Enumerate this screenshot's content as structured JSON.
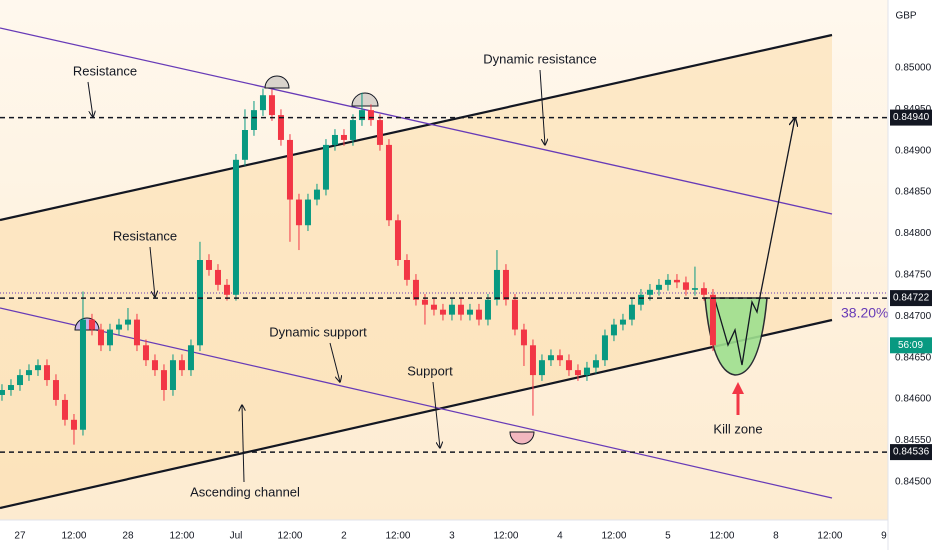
{
  "chart_data": {
    "type": "candlestick",
    "currency": "GBP",
    "x": [
      -4,
      -2,
      0,
      2,
      4,
      6,
      8,
      10,
      12,
      14,
      16,
      18,
      20,
      22,
      24,
      26,
      28,
      30,
      32,
      34,
      36,
      38,
      40,
      42,
      44,
      46,
      48,
      50,
      52,
      54,
      56,
      58,
      60,
      62,
      64,
      66,
      68,
      70,
      72,
      74,
      76,
      78,
      80,
      82,
      84,
      86,
      88,
      90,
      92,
      94,
      96,
      98,
      100,
      102,
      104,
      106,
      108,
      110,
      112,
      114,
      116,
      118,
      120,
      122,
      124,
      126,
      128,
      130,
      132,
      134,
      136,
      138,
      140,
      142,
      144,
      146,
      148,
      150,
      152,
      154
    ],
    "open": [
      0.84605,
      0.84611,
      0.84617,
      0.84629,
      0.84635,
      0.84641,
      0.84623,
      0.84599,
      0.84575,
      0.84563,
      0.84696,
      0.84684,
      0.84665,
      0.84684,
      0.8469,
      0.84696,
      0.84665,
      0.84647,
      0.84635,
      0.84611,
      0.84647,
      0.84635,
      0.84665,
      0.84768,
      0.84756,
      0.84738,
      0.84726,
      0.84889,
      0.84925,
      0.84949,
      0.84967,
      0.84943,
      0.84913,
      0.84841,
      0.8481,
      0.84841,
      0.84853,
      0.84907,
      0.84919,
      0.84913,
      0.84937,
      0.84949,
      0.84937,
      0.84907,
      0.84816,
      0.84768,
      0.84744,
      0.8472,
      0.84714,
      0.84708,
      0.84702,
      0.84714,
      0.84702,
      0.84708,
      0.84696,
      0.8472,
      0.84756,
      0.8472,
      0.84684,
      0.84665,
      0.84629,
      0.84647,
      0.84653,
      0.84647,
      0.84635,
      0.84629,
      0.84638,
      0.84647,
      0.84677,
      0.8469,
      0.84696,
      0.84714,
      0.84726,
      0.84732,
      0.84738,
      0.84744,
      0.84741,
      0.84732,
      0.84734,
      0.84726
    ],
    "high": [
      0.84618,
      0.84624,
      0.84636,
      0.84642,
      0.84648,
      0.84648,
      0.8463,
      0.84606,
      0.84582,
      0.8473,
      0.84703,
      0.84691,
      0.84691,
      0.84697,
      0.8471,
      0.84703,
      0.84672,
      0.84654,
      0.84642,
      0.84654,
      0.84654,
      0.84672,
      0.8479,
      0.84775,
      0.84763,
      0.84745,
      0.84896,
      0.8495,
      0.8496,
      0.84975,
      0.84974,
      0.8495,
      0.8492,
      0.84848,
      0.84848,
      0.8486,
      0.84914,
      0.84926,
      0.84926,
      0.84944,
      0.8497,
      0.84956,
      0.84944,
      0.84914,
      0.84823,
      0.84775,
      0.84751,
      0.84727,
      0.84721,
      0.84715,
      0.84721,
      0.84721,
      0.84715,
      0.84715,
      0.84727,
      0.8478,
      0.84763,
      0.84727,
      0.84691,
      0.84672,
      0.84654,
      0.8466,
      0.8466,
      0.84654,
      0.84642,
      0.84645,
      0.84654,
      0.84684,
      0.84697,
      0.84703,
      0.84721,
      0.84733,
      0.84739,
      0.84745,
      0.84751,
      0.84751,
      0.84748,
      0.8476,
      0.84741,
      0.84733
    ],
    "low": [
      0.84598,
      0.84604,
      0.8461,
      0.84622,
      0.84628,
      0.84616,
      0.84592,
      0.84568,
      0.84545,
      0.84556,
      0.84677,
      0.84658,
      0.84658,
      0.84677,
      0.84683,
      0.84658,
      0.8464,
      0.84628,
      0.84598,
      0.84604,
      0.84628,
      0.84628,
      0.84658,
      0.84749,
      0.84731,
      0.84719,
      0.84719,
      0.84882,
      0.84918,
      0.84942,
      0.84936,
      0.84906,
      0.8479,
      0.8478,
      0.84803,
      0.84834,
      0.84846,
      0.849,
      0.84906,
      0.84906,
      0.8493,
      0.8493,
      0.849,
      0.84809,
      0.84761,
      0.84737,
      0.84713,
      0.8469,
      0.84701,
      0.84695,
      0.84695,
      0.84695,
      0.84695,
      0.84689,
      0.84689,
      0.84713,
      0.84713,
      0.84677,
      0.8464,
      0.8458,
      0.84622,
      0.8464,
      0.8464,
      0.84628,
      0.84622,
      0.84622,
      0.84631,
      0.8464,
      0.8467,
      0.84683,
      0.84689,
      0.84707,
      0.84719,
      0.84725,
      0.84731,
      0.84734,
      0.84725,
      0.84725,
      0.84719,
      0.84658
    ],
    "close": [
      0.84611,
      0.84617,
      0.84629,
      0.84635,
      0.84641,
      0.84623,
      0.84599,
      0.84575,
      0.84563,
      0.84696,
      0.84684,
      0.84665,
      0.84684,
      0.8469,
      0.84696,
      0.84665,
      0.84647,
      0.84635,
      0.84611,
      0.84647,
      0.84635,
      0.84665,
      0.84768,
      0.84756,
      0.84738,
      0.84726,
      0.84889,
      0.84925,
      0.84949,
      0.84967,
      0.84943,
      0.84913,
      0.84841,
      0.8481,
      0.84841,
      0.84853,
      0.84907,
      0.84919,
      0.84913,
      0.84937,
      0.84949,
      0.84937,
      0.84907,
      0.84816,
      0.84768,
      0.84744,
      0.8472,
      0.84714,
      0.84708,
      0.84702,
      0.84714,
      0.84702,
      0.84708,
      0.84696,
      0.8472,
      0.84756,
      0.8472,
      0.84684,
      0.84665,
      0.84629,
      0.84647,
      0.84653,
      0.84647,
      0.84635,
      0.84629,
      0.84638,
      0.84647,
      0.84677,
      0.8469,
      0.84696,
      0.84714,
      0.84726,
      0.84732,
      0.84738,
      0.84744,
      0.84741,
      0.84732,
      0.84734,
      0.84726,
      0.84665
    ],
    "up_color": "#089981",
    "down_color": "#f23645",
    "xlim": [
      -4.44,
      192.9
    ],
    "xticks": [
      {
        "value": 0,
        "label": "27"
      },
      {
        "value": 12,
        "label": "12:00"
      },
      {
        "value": 24,
        "label": "28"
      },
      {
        "value": 36,
        "label": "12:00"
      },
      {
        "value": 48,
        "label": "Jul"
      },
      {
        "value": 60,
        "label": "12:00"
      },
      {
        "value": 72,
        "label": "2"
      },
      {
        "value": 84,
        "label": "12:00"
      },
      {
        "value": 96,
        "label": "3"
      },
      {
        "value": 108,
        "label": "12:00"
      },
      {
        "value": 120,
        "label": "4"
      },
      {
        "value": 132,
        "label": "12:00"
      },
      {
        "value": 144,
        "label": "5"
      },
      {
        "value": 156,
        "label": "12:00"
      },
      {
        "value": 168,
        "label": "8"
      },
      {
        "value": 180,
        "label": "12:00"
      },
      {
        "value": 192,
        "label": "9"
      }
    ],
    "ylim": [
      0.84454,
      0.85082
    ],
    "yticks": [
      {
        "value": 0.845,
        "label": "0.84500"
      },
      {
        "value": 0.8455,
        "label": "0.84550"
      },
      {
        "value": 0.846,
        "label": "0.84600"
      },
      {
        "value": 0.8465,
        "label": "0.84650"
      },
      {
        "value": 0.847,
        "label": "0.84700"
      },
      {
        "value": 0.8475,
        "label": "0.84750"
      },
      {
        "value": 0.848,
        "label": "0.84800"
      },
      {
        "value": 0.8485,
        "label": "0.84850"
      },
      {
        "value": 0.849,
        "label": "0.84900"
      },
      {
        "value": 0.8495,
        "label": "0.84950"
      },
      {
        "value": 0.85,
        "label": "0.85000"
      }
    ],
    "grid": false,
    "levels": [
      {
        "value": 0.8494,
        "label": "0.84940"
      },
      {
        "value": 0.84722,
        "label": "0.84722"
      },
      {
        "value": 0.84536,
        "label": "0.84536"
      }
    ],
    "countdown": "56:09",
    "fib_label": "38.20%",
    "annotations": [
      "Resistance",
      "Dynamic resistance",
      "Resistance",
      "Dynamic support",
      "Support",
      "Ascending channel",
      "Kill zone"
    ]
  }
}
